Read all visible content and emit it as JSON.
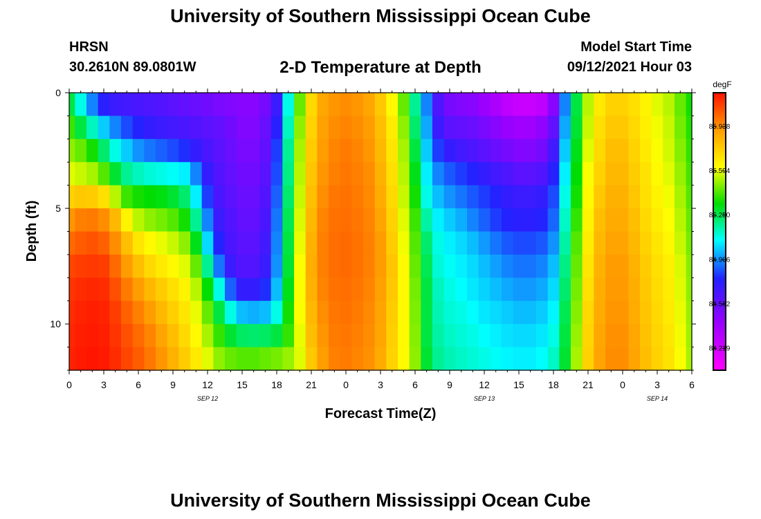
{
  "header": {
    "title": "University of Southern Mississippi Ocean Cube",
    "station": "HRSN",
    "coordinates": "30.2610N  89.0801W",
    "subtitle": "2-D Temperature at Depth",
    "model_start_label": "Model Start Time",
    "model_start_value": "09/12/2021 Hour 03"
  },
  "footer": {
    "title": "University of Southern Mississippi Ocean Cube"
  },
  "colors": {
    "scale": [
      "#ff00ff",
      "#9900ff",
      "#2222ff",
      "#00ffff",
      "#00dd00",
      "#ffff00",
      "#ff9900",
      "#ff1100"
    ],
    "axis": "#000000"
  },
  "chart_data": {
    "type": "heatmap",
    "xlabel": "Forecast Time(Z)",
    "ylabel": "Depth (ft)",
    "x_range_hours": [
      0,
      54
    ],
    "y_range_ft": [
      0,
      12
    ],
    "x_ticks": [
      {
        "hour": 0,
        "label": "0"
      },
      {
        "hour": 3,
        "label": "3"
      },
      {
        "hour": 6,
        "label": "6"
      },
      {
        "hour": 9,
        "label": "9"
      },
      {
        "hour": 12,
        "label": "12"
      },
      {
        "hour": 15,
        "label": "15"
      },
      {
        "hour": 18,
        "label": "18"
      },
      {
        "hour": 21,
        "label": "21"
      },
      {
        "hour": 24,
        "label": "0"
      },
      {
        "hour": 27,
        "label": "3"
      },
      {
        "hour": 30,
        "label": "6"
      },
      {
        "hour": 33,
        "label": "9"
      },
      {
        "hour": 36,
        "label": "12"
      },
      {
        "hour": 39,
        "label": "15"
      },
      {
        "hour": 42,
        "label": "18"
      },
      {
        "hour": 45,
        "label": "21"
      },
      {
        "hour": 48,
        "label": "0"
      },
      {
        "hour": 51,
        "label": "3"
      },
      {
        "hour": 54,
        "label": "6"
      }
    ],
    "date_labels": [
      {
        "hour": 12,
        "label": "SEP 12"
      },
      {
        "hour": 36,
        "label": "SEP 13"
      },
      {
        "hour": 51,
        "label": "SEP 14"
      }
    ],
    "y_ticks": [
      {
        "depth": 0,
        "label": "0"
      },
      {
        "depth": 5,
        "label": "5"
      },
      {
        "depth": 10,
        "label": "10"
      }
    ],
    "colorbar": {
      "unit": "degF",
      "min": 84.05,
      "max": 86.2,
      "ticks": [
        {
          "value": 85.938,
          "label": "85.938"
        },
        {
          "value": 85.594,
          "label": "85.594"
        },
        {
          "value": 85.25,
          "label": "85.250"
        },
        {
          "value": 84.906,
          "label": "84.906"
        },
        {
          "value": 84.562,
          "label": "84.562"
        },
        {
          "value": 84.219,
          "label": "84.219"
        }
      ]
    },
    "depth_layers_ft": [
      0.5,
      1.5,
      2.5,
      3.5,
      4.5,
      5.5,
      6.5,
      7.5,
      8.5,
      9.5,
      10.5,
      11.5
    ],
    "hour_columns": [
      0,
      1,
      2,
      3,
      4,
      5,
      6,
      7,
      8,
      9,
      10,
      11,
      12,
      13,
      14,
      15,
      16,
      17,
      18,
      19,
      20,
      21,
      22,
      23,
      24,
      25,
      26,
      27,
      28,
      29,
      30,
      31,
      32,
      33,
      34,
      35,
      36,
      37,
      38,
      39,
      40,
      41,
      42,
      43,
      44,
      45,
      46,
      47,
      48,
      49,
      50,
      51,
      52,
      53,
      54
    ],
    "temperature_degF": [
      [
        85.2,
        85.0,
        84.8,
        84.65,
        84.6,
        84.58,
        84.56,
        84.55,
        84.54,
        84.52,
        84.5,
        84.48,
        84.46,
        84.44,
        84.42,
        84.4,
        84.4,
        84.45,
        84.6,
        85.0,
        85.4,
        85.7,
        85.85,
        85.9,
        85.92,
        85.9,
        85.85,
        85.75,
        85.6,
        85.4,
        85.1,
        84.8,
        84.55,
        84.45,
        84.42,
        84.4,
        84.35,
        84.3,
        84.25,
        84.22,
        84.22,
        84.25,
        84.4,
        84.8,
        85.2,
        85.5,
        85.65,
        85.72,
        85.72,
        85.68,
        85.62,
        85.55,
        85.5,
        85.4,
        85.3
      ],
      [
        85.35,
        85.2,
        85.05,
        84.9,
        84.8,
        84.72,
        84.66,
        84.62,
        84.6,
        84.58,
        84.56,
        84.54,
        84.52,
        84.5,
        84.46,
        84.42,
        84.42,
        84.48,
        84.65,
        85.05,
        85.45,
        85.72,
        85.87,
        85.92,
        85.94,
        85.92,
        85.88,
        85.78,
        85.64,
        85.45,
        85.15,
        84.85,
        84.6,
        84.52,
        84.5,
        84.48,
        84.44,
        84.4,
        84.36,
        84.34,
        84.34,
        84.38,
        84.5,
        84.85,
        85.22,
        85.52,
        85.68,
        85.75,
        85.75,
        85.7,
        85.63,
        85.57,
        85.52,
        85.42,
        85.32
      ],
      [
        85.45,
        85.4,
        85.3,
        85.15,
        85.0,
        84.9,
        84.82,
        84.78,
        84.75,
        84.72,
        84.68,
        84.62,
        84.56,
        84.52,
        84.48,
        84.44,
        84.44,
        84.5,
        84.7,
        85.1,
        85.48,
        85.74,
        85.88,
        85.94,
        85.96,
        85.94,
        85.9,
        85.8,
        85.66,
        85.48,
        85.2,
        84.9,
        84.7,
        84.62,
        84.58,
        84.55,
        84.52,
        84.48,
        84.45,
        84.42,
        84.42,
        84.45,
        84.58,
        84.9,
        85.25,
        85.55,
        85.7,
        85.78,
        85.78,
        85.72,
        85.65,
        85.58,
        85.53,
        85.44,
        85.34
      ],
      [
        85.55,
        85.52,
        85.48,
        85.38,
        85.22,
        85.1,
        85.05,
        85.02,
        85.0,
        84.98,
        84.95,
        84.8,
        84.62,
        84.54,
        84.5,
        84.46,
        84.46,
        84.52,
        84.72,
        85.12,
        85.5,
        85.76,
        85.9,
        85.95,
        85.97,
        85.95,
        85.92,
        85.82,
        85.68,
        85.5,
        85.25,
        84.95,
        84.8,
        84.74,
        84.7,
        84.66,
        84.62,
        84.58,
        84.55,
        84.52,
        84.52,
        84.54,
        84.65,
        84.95,
        85.28,
        85.58,
        85.72,
        85.8,
        85.8,
        85.74,
        85.67,
        85.6,
        85.55,
        85.46,
        85.36
      ],
      [
        85.72,
        85.75,
        85.74,
        85.68,
        85.5,
        85.35,
        85.3,
        85.28,
        85.26,
        85.22,
        85.15,
        84.95,
        84.7,
        84.56,
        84.52,
        84.48,
        84.48,
        84.54,
        84.75,
        85.15,
        85.52,
        85.78,
        85.92,
        85.97,
        85.98,
        85.96,
        85.93,
        85.84,
        85.7,
        85.52,
        85.3,
        85.0,
        84.88,
        84.82,
        84.78,
        84.74,
        84.7,
        84.66,
        84.62,
        84.6,
        84.6,
        84.62,
        84.72,
        85.0,
        85.3,
        85.6,
        85.75,
        85.82,
        85.82,
        85.76,
        85.68,
        85.62,
        85.57,
        85.48,
        85.38
      ],
      [
        85.9,
        85.95,
        85.96,
        85.92,
        85.8,
        85.62,
        85.5,
        85.45,
        85.42,
        85.38,
        85.3,
        85.1,
        84.8,
        84.6,
        84.54,
        84.5,
        84.5,
        84.56,
        84.78,
        85.18,
        85.54,
        85.8,
        85.94,
        85.98,
        85.99,
        85.97,
        85.94,
        85.86,
        85.72,
        85.55,
        85.35,
        85.08,
        84.95,
        84.9,
        84.86,
        84.8,
        84.75,
        84.7,
        84.66,
        84.64,
        84.64,
        84.66,
        84.76,
        85.04,
        85.34,
        85.62,
        85.78,
        85.84,
        85.84,
        85.78,
        85.7,
        85.64,
        85.59,
        85.5,
        85.4
      ],
      [
        86.0,
        86.03,
        86.05,
        86.02,
        85.92,
        85.78,
        85.66,
        85.6,
        85.56,
        85.52,
        85.45,
        85.25,
        84.92,
        84.66,
        84.56,
        84.52,
        84.52,
        84.58,
        84.8,
        85.2,
        85.56,
        85.82,
        85.95,
        85.99,
        86.0,
        85.98,
        85.95,
        85.88,
        85.74,
        85.57,
        85.38,
        85.15,
        85.0,
        84.95,
        84.92,
        84.88,
        84.83,
        84.78,
        84.74,
        84.72,
        84.72,
        84.74,
        84.82,
        85.08,
        85.38,
        85.64,
        85.8,
        85.86,
        85.86,
        85.8,
        85.72,
        85.66,
        85.61,
        85.52,
        85.42
      ],
      [
        86.08,
        86.1,
        86.11,
        86.1,
        86.0,
        85.88,
        85.78,
        85.7,
        85.65,
        85.6,
        85.55,
        85.4,
        85.1,
        84.78,
        84.6,
        84.54,
        84.54,
        84.6,
        84.82,
        85.22,
        85.58,
        85.83,
        85.95,
        85.99,
        86.0,
        85.98,
        85.95,
        85.88,
        85.76,
        85.6,
        85.4,
        85.18,
        85.02,
        84.98,
        84.95,
        84.92,
        84.88,
        84.84,
        84.8,
        84.78,
        84.78,
        84.8,
        84.88,
        85.12,
        85.4,
        85.66,
        85.82,
        85.88,
        85.88,
        85.82,
        85.74,
        85.68,
        85.63,
        85.54,
        85.44
      ],
      [
        86.12,
        86.14,
        86.15,
        86.14,
        86.06,
        85.96,
        85.88,
        85.8,
        85.74,
        85.68,
        85.62,
        85.5,
        85.28,
        85.0,
        84.75,
        84.62,
        84.62,
        84.68,
        84.88,
        85.25,
        85.58,
        85.82,
        85.94,
        85.98,
        85.99,
        85.97,
        85.94,
        85.87,
        85.75,
        85.6,
        85.42,
        85.2,
        85.05,
        85.0,
        84.97,
        84.94,
        84.91,
        84.88,
        84.85,
        84.83,
        84.83,
        84.85,
        84.92,
        85.15,
        85.42,
        85.68,
        85.83,
        85.89,
        85.89,
        85.83,
        85.75,
        85.69,
        85.64,
        85.55,
        85.45
      ],
      [
        86.14,
        86.16,
        86.17,
        86.16,
        86.1,
        86.02,
        85.95,
        85.88,
        85.8,
        85.73,
        85.66,
        85.56,
        85.4,
        85.2,
        85.0,
        84.88,
        84.86,
        84.88,
        85.0,
        85.3,
        85.58,
        85.8,
        85.92,
        85.97,
        85.98,
        85.96,
        85.93,
        85.86,
        85.74,
        85.6,
        85.43,
        85.2,
        85.06,
        85.02,
        85.0,
        84.97,
        84.94,
        84.92,
        84.9,
        84.88,
        84.88,
        84.9,
        84.96,
        85.18,
        85.44,
        85.7,
        85.84,
        85.9,
        85.9,
        85.84,
        85.76,
        85.7,
        85.65,
        85.56,
        85.46
      ],
      [
        86.15,
        86.17,
        86.18,
        86.17,
        86.12,
        86.06,
        86.0,
        85.94,
        85.86,
        85.78,
        85.7,
        85.6,
        85.48,
        85.34,
        85.22,
        85.16,
        85.15,
        85.16,
        85.2,
        85.34,
        85.56,
        85.78,
        85.9,
        85.96,
        85.97,
        85.95,
        85.92,
        85.85,
        85.73,
        85.6,
        85.44,
        85.2,
        85.08,
        85.04,
        85.02,
        85.0,
        84.97,
        84.95,
        84.93,
        84.92,
        84.92,
        84.94,
        85.0,
        85.2,
        85.46,
        85.71,
        85.85,
        85.91,
        85.91,
        85.85,
        85.77,
        85.71,
        85.66,
        85.57,
        85.47
      ],
      [
        86.16,
        86.18,
        86.19,
        86.18,
        86.14,
        86.08,
        86.03,
        85.97,
        85.9,
        85.82,
        85.74,
        85.65,
        85.55,
        85.45,
        85.4,
        85.38,
        85.38,
        85.4,
        85.42,
        85.46,
        85.55,
        85.75,
        85.88,
        85.95,
        85.96,
        85.94,
        85.91,
        85.84,
        85.72,
        85.6,
        85.45,
        85.22,
        85.1,
        85.06,
        85.04,
        85.02,
        85.0,
        84.98,
        84.96,
        84.95,
        84.95,
        84.97,
        85.04,
        85.22,
        85.48,
        85.72,
        85.86,
        85.92,
        85.92,
        85.86,
        85.78,
        85.72,
        85.67,
        85.58,
        85.48
      ]
    ]
  }
}
